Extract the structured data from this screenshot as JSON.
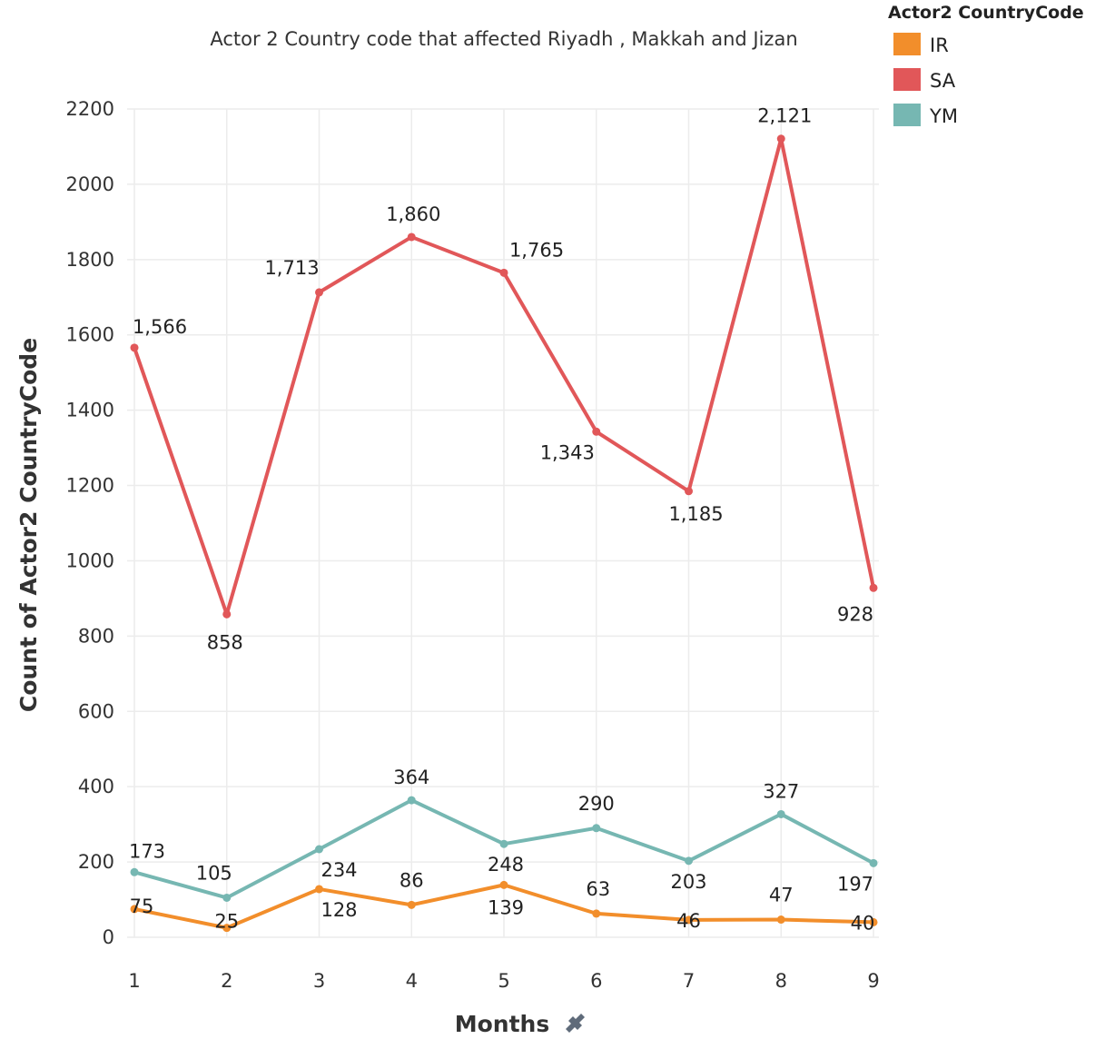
{
  "chart_data": {
    "type": "line",
    "title": "Actor 2 Country code that affected Riyadh , Makkah and Jizan",
    "xlabel": "Months",
    "ylabel": "Count of Actor2 CountryCode",
    "x": [
      1,
      2,
      3,
      4,
      5,
      6,
      7,
      8,
      9
    ],
    "x_tick_labels": [
      "1",
      "2",
      "3",
      "4",
      "5",
      "6",
      "7",
      "8",
      "9"
    ],
    "ylim": [
      0,
      2200
    ],
    "y_ticks": [
      0,
      200,
      400,
      600,
      800,
      1000,
      1200,
      1400,
      1600,
      1800,
      2000,
      2200
    ],
    "y_tick_labels": [
      "0",
      "200",
      "400",
      "600",
      "800",
      "1000",
      "1200",
      "1400",
      "1600",
      "1800",
      "2000",
      "2200"
    ],
    "grid": true,
    "legend": {
      "title": "Actor2 CountryCode",
      "position": "top-right"
    },
    "series": [
      {
        "name": "IR",
        "color": "#f28e2b",
        "values": [
          75,
          25,
          128,
          86,
          139,
          63,
          46,
          47,
          40
        ],
        "labels": [
          "75",
          "25",
          "128",
          "86",
          "139",
          "63",
          "46",
          "47",
          "40"
        ]
      },
      {
        "name": "SA",
        "color": "#e15759",
        "values": [
          1566,
          858,
          1713,
          1860,
          1765,
          1343,
          1185,
          2121,
          928
        ],
        "labels": [
          "1,566",
          "858",
          "1,713",
          "1,860",
          "1,765",
          "1,343",
          "1,185",
          "2,121",
          "928"
        ]
      },
      {
        "name": "YM",
        "color": "#76b7b2",
        "values": [
          173,
          105,
          234,
          364,
          248,
          290,
          203,
          327,
          197
        ],
        "labels": [
          "173",
          "105",
          "234",
          "364",
          "248",
          "290",
          "203",
          "327",
          "197"
        ]
      }
    ]
  }
}
